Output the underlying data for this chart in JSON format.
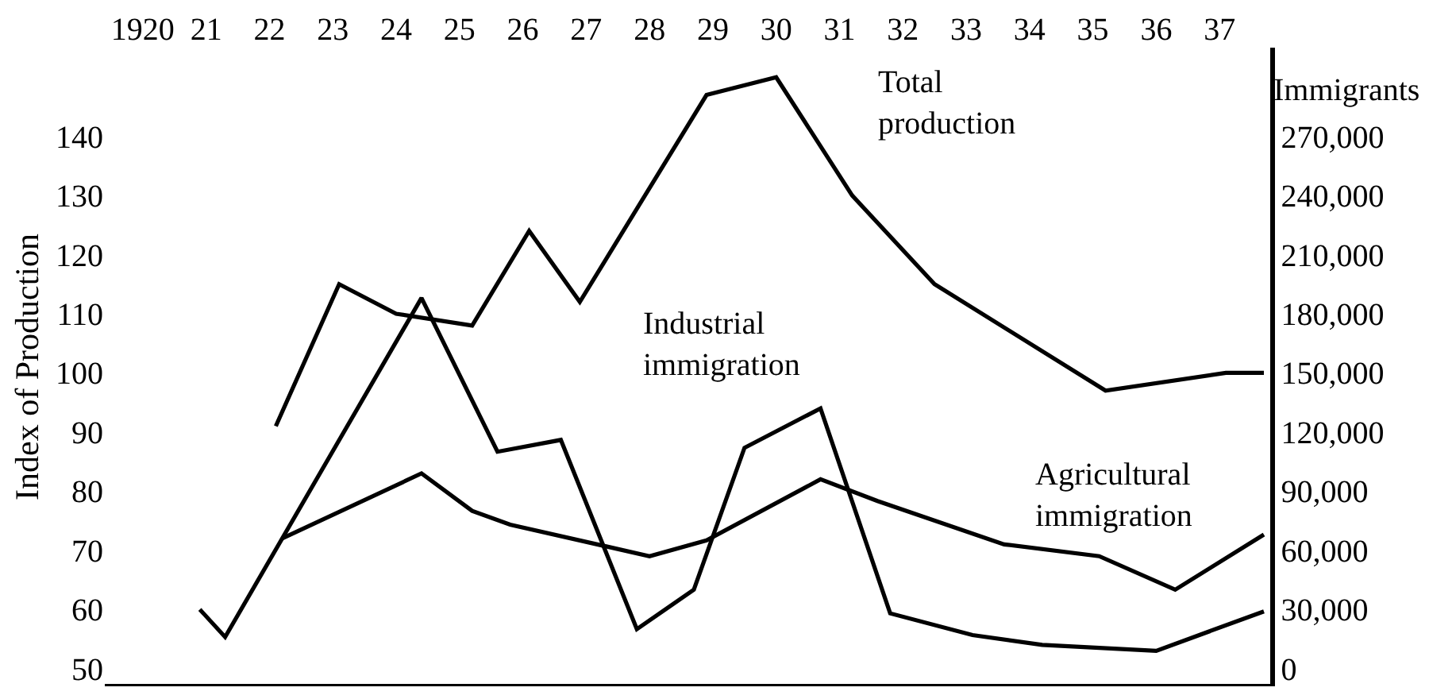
{
  "chart_data": {
    "type": "line",
    "ylabel": "Index of Production",
    "y2label": "Immigrants",
    "xlim": [
      1919.4,
      1937.8
    ],
    "xticks": [
      1920,
      {
        "value": 1921,
        "label": "21"
      },
      {
        "value": 1922,
        "label": "22"
      },
      {
        "value": 1923,
        "label": "23"
      },
      {
        "value": 1924,
        "label": "24"
      },
      {
        "value": 1925,
        "label": "25"
      },
      {
        "value": 1926,
        "label": "26"
      },
      {
        "value": 1927,
        "label": "27"
      },
      {
        "value": 1928,
        "label": "28"
      },
      {
        "value": 1929,
        "label": "29"
      },
      {
        "value": 1930,
        "label": "30"
      },
      {
        "value": 1931,
        "label": "31"
      },
      {
        "value": 1932,
        "label": "32"
      },
      {
        "value": 1933,
        "label": "33"
      },
      {
        "value": 1934,
        "label": "34"
      },
      {
        "value": 1935,
        "label": "35"
      },
      {
        "value": 1936,
        "label": "36"
      },
      {
        "value": 1937,
        "label": "37"
      }
    ],
    "ylim": [
      47,
      155
    ],
    "yticks": [
      50,
      60,
      70,
      80,
      90,
      100,
      110,
      120,
      130,
      140
    ],
    "y2lim": [
      -9000,
      315000
    ],
    "y2ticks": [
      0,
      {
        "value": 30000,
        "label": "30,000"
      },
      {
        "value": 60000,
        "label": "60,000"
      },
      {
        "value": 90000,
        "label": "90,000"
      },
      {
        "value": 120000,
        "label": "120,000"
      },
      {
        "value": 150000,
        "label": "150,000"
      },
      {
        "value": 180000,
        "label": "180,000"
      },
      {
        "value": 210000,
        "label": "210,000"
      },
      {
        "value": 240000,
        "label": "240,000"
      },
      {
        "value": 270000,
        "label": "270,000"
      }
    ],
    "legend": false,
    "marker": "none",
    "line_style": "solid",
    "series": [
      {
        "name": "Total production",
        "color": "#000000",
        "x": [
          1922.1,
          1923.1,
          1924.0,
          1925.2,
          1926.1,
          1926.9,
          1928.9,
          1930.0,
          1931.2,
          1932.5,
          1935.2,
          1937.1,
          1937.7
        ],
        "values": [
          91,
          115,
          110,
          108,
          124,
          112,
          147,
          150,
          130,
          115,
          97,
          100,
          100
        ]
      },
      {
        "name": "Industrial immigration",
        "color": "#000000",
        "axis": "y2",
        "x": [
          1920.9,
          1921.3,
          1924.4,
          1925.6,
          1926.6,
          1927.8,
          1928.7,
          1929.5,
          1930.7,
          1931.8,
          1933.1,
          1934.2,
          1936.0,
          1937.7
        ],
        "values": [
          30000,
          16000,
          188000,
          110000,
          116000,
          20000,
          40000,
          112000,
          132000,
          28000,
          17000,
          12000,
          9000,
          29000
        ]
      },
      {
        "name": "Agricultural immigration",
        "color": "#000000",
        "axis": "y2",
        "x": [
          1922.2,
          1924.4,
          1925.2,
          1925.8,
          1928.0,
          1928.9,
          1930.7,
          1931.6,
          1933.6,
          1935.1,
          1936.3,
          1937.7
        ],
        "values": [
          66000,
          99000,
          80000,
          73000,
          57000,
          65000,
          96000,
          85000,
          63000,
          57000,
          40000,
          68000
        ]
      }
    ]
  }
}
